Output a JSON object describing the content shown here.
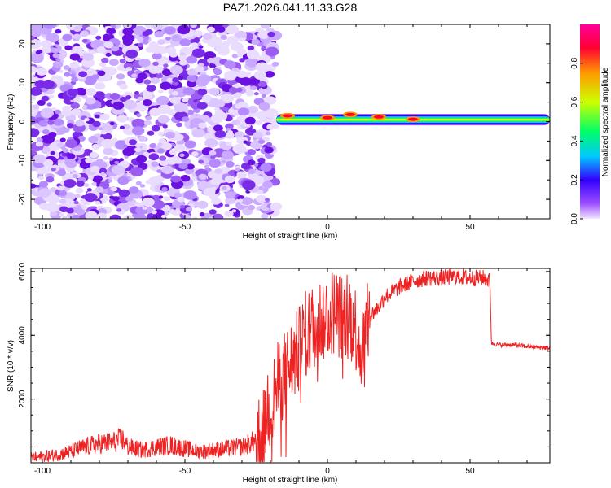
{
  "figure_title": "PAZ1.2026.041.11.33.G28",
  "chart_data": [
    {
      "type": "heatmap",
      "title": "PAZ1.2026.041.11.33.G28",
      "xlabel": "Height of straight line (km)",
      "ylabel": "Frequency (Hz)",
      "xlim": [
        -104,
        78
      ],
      "ylim": [
        -25,
        25
      ],
      "xticks": [
        -100,
        -50,
        0,
        50
      ],
      "yticks": [
        -20,
        -10,
        0,
        10,
        20
      ],
      "xtick_labels": [
        "-100",
        "-50",
        "0",
        "50"
      ],
      "ytick_labels": [
        "-20",
        "-10",
        "0",
        "10",
        "20"
      ],
      "noise_region_x": [
        -104,
        -18
      ],
      "signal_line": {
        "x_start": -18,
        "x_end": 78,
        "frequency_hz": 0.5,
        "peak_frequency_offsets_hz": [
          [
            -14,
            1.5
          ],
          [
            0,
            1.0
          ],
          [
            8,
            1.8
          ],
          [
            18,
            1.2
          ],
          [
            30,
            0.6
          ]
        ]
      },
      "colorbar": {
        "label": "Normalized spectral amplitude",
        "range": [
          0.0,
          1.0
        ],
        "ticks": [
          0.0,
          0.2,
          0.4,
          0.6,
          0.8
        ],
        "tick_labels": [
          "0.0",
          "0.2",
          "0.4",
          "0.6",
          "0.8"
        ],
        "colormap": [
          "#f2e6ff",
          "#9b4dff",
          "#3300ff",
          "#00c8ff",
          "#00ff66",
          "#ccff00",
          "#ff9900",
          "#ff0033",
          "#ff0099"
        ]
      }
    },
    {
      "type": "line",
      "xlabel": "Height of straight line (km)",
      "ylabel": "SNR (10 * v/v)",
      "xlim": [
        -104,
        78
      ],
      "ylim": [
        0,
        6100
      ],
      "xticks": [
        -100,
        -50,
        0,
        50
      ],
      "yticks": [
        2000,
        4000,
        6000
      ],
      "xtick_labels": [
        "-100",
        "-50",
        "0",
        "50"
      ],
      "ytick_labels": [
        "2000",
        "4000",
        "6000"
      ],
      "color": "#ee2222",
      "series": [
        {
          "name": "SNR",
          "x": [
            -104,
            -95,
            -90,
            -85,
            -80,
            -75,
            -72,
            -70,
            -65,
            -60,
            -55,
            -50,
            -45,
            -40,
            -35,
            -30,
            -25,
            -22,
            -20,
            -17,
            -15,
            -13,
            -10,
            -8,
            -5,
            -2,
            0,
            3,
            5,
            8,
            10,
            12,
            15,
            18,
            20,
            25,
            30,
            35,
            40,
            45,
            50,
            55,
            57,
            57.5,
            60,
            65,
            70,
            78
          ],
          "y": [
            150,
            250,
            350,
            500,
            600,
            650,
            750,
            500,
            400,
            500,
            550,
            450,
            350,
            400,
            450,
            500,
            700,
            1100,
            1800,
            2500,
            2800,
            3100,
            3500,
            4000,
            4300,
            4500,
            4650,
            4800,
            4500,
            4800,
            4200,
            3500,
            4600,
            4900,
            5200,
            5500,
            5700,
            5800,
            5800,
            5850,
            5800,
            5800,
            5700,
            3750,
            3700,
            3700,
            3650,
            3600
          ]
        }
      ]
    }
  ]
}
